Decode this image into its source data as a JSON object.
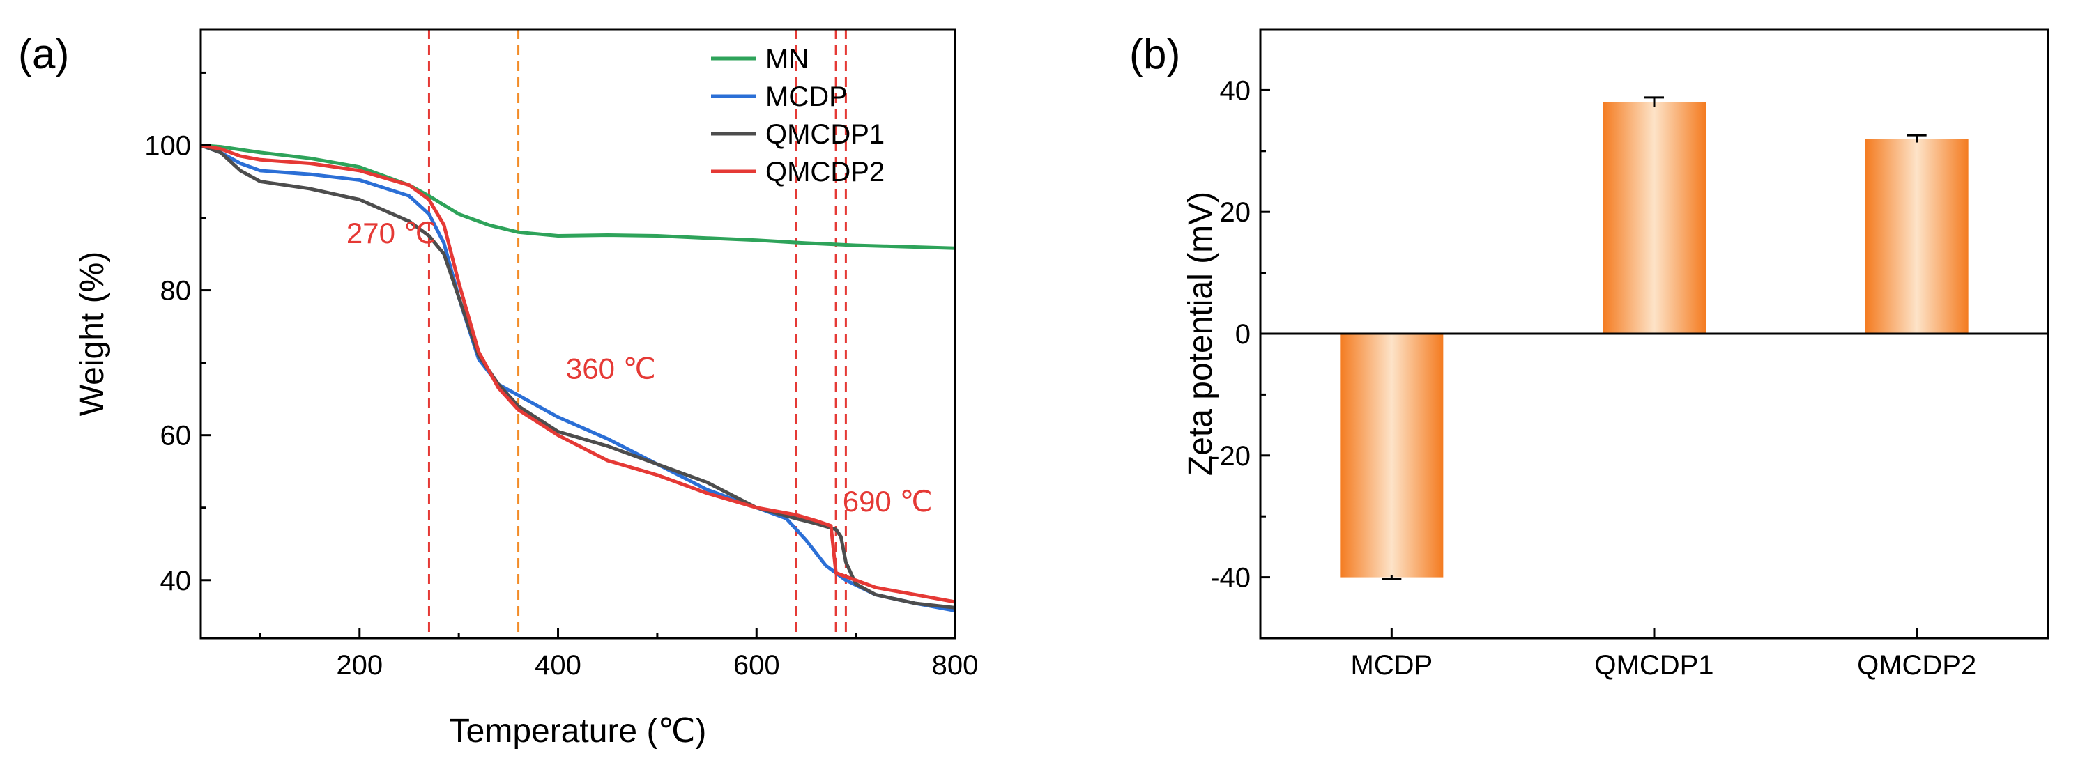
{
  "chart_data": [
    {
      "panel_label": "(a)",
      "type": "line",
      "xlabel": "Temperature (℃)",
      "ylabel": "Weight (%)",
      "xlim": [
        40,
        800
      ],
      "ylim": [
        32,
        116
      ],
      "xticks": [
        "200",
        "400",
        "600",
        "800"
      ],
      "yticks": [
        "40",
        "60",
        "80",
        "100"
      ],
      "legend_position": "top-right",
      "series": [
        {
          "name": "MN",
          "color": "#2ea35a",
          "x": [
            40,
            60,
            100,
            150,
            200,
            250,
            270,
            300,
            330,
            360,
            400,
            450,
            500,
            550,
            600,
            650,
            700,
            750,
            800
          ],
          "y": [
            100,
            99.8,
            99.0,
            98.2,
            97.0,
            94.5,
            93.0,
            90.5,
            89.0,
            88.0,
            87.5,
            87.6,
            87.5,
            87.2,
            86.9,
            86.5,
            86.2,
            86.0,
            85.8
          ]
        },
        {
          "name": "MCDP",
          "color": "#2b6fd6",
          "x": [
            40,
            60,
            80,
            100,
            150,
            200,
            250,
            270,
            285,
            300,
            320,
            340,
            360,
            400,
            450,
            500,
            550,
            600,
            630,
            650,
            670,
            690,
            720,
            760,
            800
          ],
          "y": [
            100,
            99.0,
            97.5,
            96.5,
            96.0,
            95.2,
            93.0,
            90.5,
            86.5,
            79.0,
            70.5,
            67.0,
            65.5,
            62.5,
            59.5,
            56.0,
            52.5,
            50.0,
            48.5,
            45.5,
            42.0,
            40.0,
            38.0,
            36.8,
            35.8
          ]
        },
        {
          "name": "QMCDP1",
          "color": "#4d4d4d",
          "x": [
            40,
            60,
            80,
            100,
            150,
            200,
            250,
            270,
            285,
            300,
            320,
            340,
            360,
            400,
            450,
            500,
            550,
            600,
            640,
            660,
            680,
            685,
            690,
            700,
            720,
            760,
            800
          ],
          "y": [
            100,
            99.0,
            96.5,
            95.0,
            94.0,
            92.5,
            89.5,
            87.5,
            85.0,
            79.0,
            71.0,
            67.0,
            64.0,
            60.5,
            58.5,
            56.0,
            53.5,
            50.0,
            48.5,
            47.8,
            47.0,
            46.0,
            42.5,
            39.5,
            38.0,
            36.8,
            36.2
          ]
        },
        {
          "name": "QMCDP2",
          "color": "#e53935",
          "x": [
            40,
            60,
            80,
            100,
            150,
            200,
            250,
            270,
            285,
            300,
            320,
            340,
            360,
            400,
            450,
            500,
            550,
            600,
            640,
            660,
            675,
            680,
            690,
            720,
            760,
            800
          ],
          "y": [
            100,
            99.5,
            98.5,
            98.0,
            97.5,
            96.5,
            94.5,
            92.5,
            89.0,
            81.0,
            71.5,
            66.5,
            63.5,
            60.0,
            56.5,
            54.5,
            52.0,
            50.0,
            49.0,
            48.2,
            47.5,
            41.0,
            40.5,
            39.0,
            38.0,
            37.0
          ]
        }
      ],
      "reference_lines": [
        {
          "x": 270,
          "color": "#e53935"
        },
        {
          "x": 360,
          "color": "#f28c28"
        },
        {
          "x": 640,
          "color": "#e53935"
        },
        {
          "x": 680,
          "color": "#e53935"
        },
        {
          "x": 690,
          "color": "#e53935"
        }
      ],
      "annotations": [
        {
          "text": "270 ℃",
          "x": 232,
          "y": 86.5,
          "color": "#e53935"
        },
        {
          "text": "360 ℃",
          "x": 408,
          "y": 67.8,
          "color": "#e53935"
        },
        {
          "text": "690 ℃",
          "x": 732,
          "y": 49.5,
          "color": "#e53935"
        }
      ]
    },
    {
      "panel_label": "(b)",
      "type": "bar",
      "xlabel": "",
      "ylabel": "Zeta potential (mV)",
      "categories": [
        "MCDP",
        "QMCDP1",
        "QMCDP2"
      ],
      "values": [
        -40,
        38,
        32
      ],
      "errors": [
        0.3,
        0.8,
        0.6
      ],
      "ylim": [
        -50,
        50
      ],
      "yticks": [
        "-40",
        "-20",
        "0",
        "20",
        "40"
      ],
      "bar_color": "#f47b20",
      "bar_highlight": "#fde3c8"
    }
  ]
}
